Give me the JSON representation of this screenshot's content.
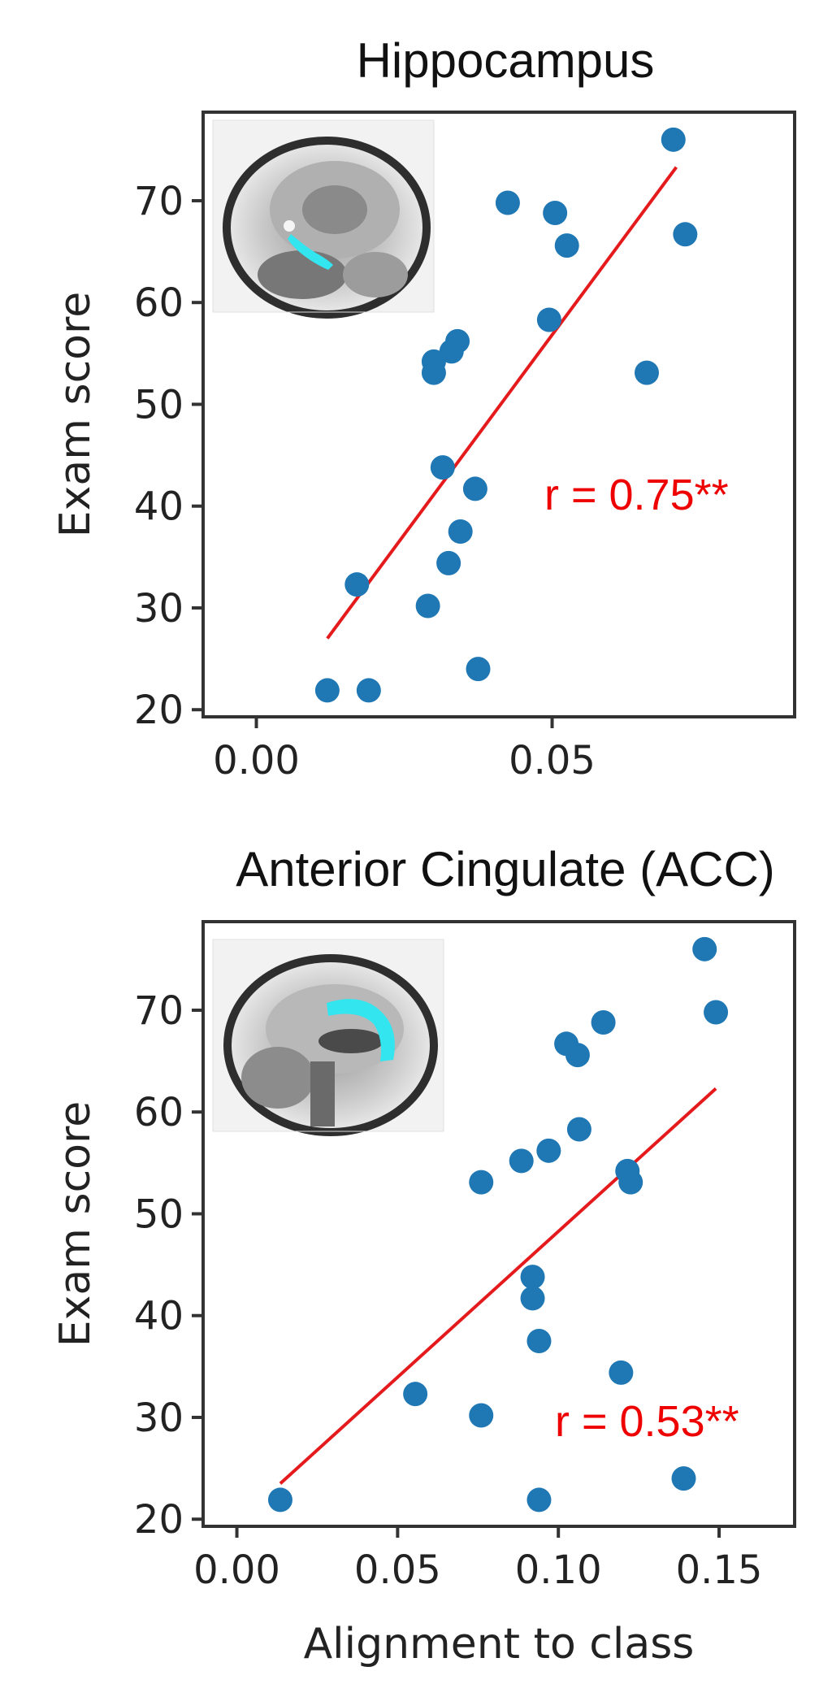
{
  "colors": {
    "points": "#1f77b4",
    "fit_line": "#e41a1c",
    "annotation": "#ee0000",
    "axes": "#333333",
    "text": "#222222",
    "highlight": "#33e5ee"
  },
  "chart_data": [
    {
      "type": "scatter",
      "title": "Hippocampus",
      "xlabel": "",
      "ylabel": "Exam score",
      "xlim": [
        -0.009,
        0.091
      ],
      "ylim": [
        19.3,
        78.7
      ],
      "xticks": [
        0.0,
        0.05
      ],
      "xtick_labels": [
        "0.00",
        "0.05"
      ],
      "yticks": [
        20,
        30,
        40,
        50,
        60,
        70
      ],
      "ytick_labels": [
        "20",
        "30",
        "40",
        "50",
        "60",
        "70"
      ],
      "grid": false,
      "legend": "none",
      "inset_image": "sagittal-brain-mri-hippocampus-highlighted",
      "annotation": "r = 0.75**",
      "points": [
        {
          "x": 0.0705,
          "y": 76.0
        },
        {
          "x": 0.0725,
          "y": 66.7
        },
        {
          "x": 0.0425,
          "y": 69.8
        },
        {
          "x": 0.0505,
          "y": 68.8
        },
        {
          "x": 0.0525,
          "y": 65.6
        },
        {
          "x": 0.0495,
          "y": 58.3
        },
        {
          "x": 0.066,
          "y": 53.1
        },
        {
          "x": 0.034,
          "y": 56.2
        },
        {
          "x": 0.033,
          "y": 55.2
        },
        {
          "x": 0.03,
          "y": 54.2
        },
        {
          "x": 0.03,
          "y": 53.1
        },
        {
          "x": 0.0315,
          "y": 43.8
        },
        {
          "x": 0.037,
          "y": 41.7
        },
        {
          "x": 0.0345,
          "y": 37.5
        },
        {
          "x": 0.0325,
          "y": 34.4
        },
        {
          "x": 0.017,
          "y": 32.3
        },
        {
          "x": 0.029,
          "y": 30.2
        },
        {
          "x": 0.0375,
          "y": 24.0
        },
        {
          "x": 0.012,
          "y": 21.9
        },
        {
          "x": 0.019,
          "y": 21.9
        }
      ],
      "fit_line": {
        "x": [
          0.012,
          0.071
        ],
        "y": [
          27.0,
          73.3
        ]
      }
    },
    {
      "type": "scatter",
      "title": "Anterior Cingulate (ACC)",
      "xlabel": "Alignment to class",
      "ylabel": "Exam score",
      "xlim": [
        -0.0105,
        0.1735
      ],
      "ylim": [
        19.3,
        78.7
      ],
      "xticks": [
        0.0,
        0.05,
        0.1,
        0.15
      ],
      "xtick_labels": [
        "0.00",
        "0.05",
        "0.10",
        "0.15"
      ],
      "yticks": [
        20,
        30,
        40,
        50,
        60,
        70
      ],
      "ytick_labels": [
        "20",
        "30",
        "40",
        "50",
        "60",
        "70"
      ],
      "grid": false,
      "legend": "none",
      "inset_image": "sagittal-brain-mri-acc-highlighted",
      "annotation": "r = 0.53**",
      "points": [
        {
          "x": 0.1455,
          "y": 76.0
        },
        {
          "x": 0.149,
          "y": 69.8
        },
        {
          "x": 0.114,
          "y": 68.8
        },
        {
          "x": 0.1025,
          "y": 66.7
        },
        {
          "x": 0.106,
          "y": 65.6
        },
        {
          "x": 0.1065,
          "y": 58.3
        },
        {
          "x": 0.097,
          "y": 56.2
        },
        {
          "x": 0.0885,
          "y": 55.2
        },
        {
          "x": 0.1215,
          "y": 54.2
        },
        {
          "x": 0.1225,
          "y": 53.1
        },
        {
          "x": 0.076,
          "y": 53.1
        },
        {
          "x": 0.092,
          "y": 43.8
        },
        {
          "x": 0.092,
          "y": 41.7
        },
        {
          "x": 0.094,
          "y": 37.5
        },
        {
          "x": 0.1195,
          "y": 34.4
        },
        {
          "x": 0.0555,
          "y": 32.3
        },
        {
          "x": 0.076,
          "y": 30.2
        },
        {
          "x": 0.139,
          "y": 24.0
        },
        {
          "x": 0.0135,
          "y": 21.9
        },
        {
          "x": 0.094,
          "y": 21.9
        }
      ],
      "fit_line": {
        "x": [
          0.0135,
          0.149
        ],
        "y": [
          23.5,
          62.3
        ]
      }
    }
  ]
}
